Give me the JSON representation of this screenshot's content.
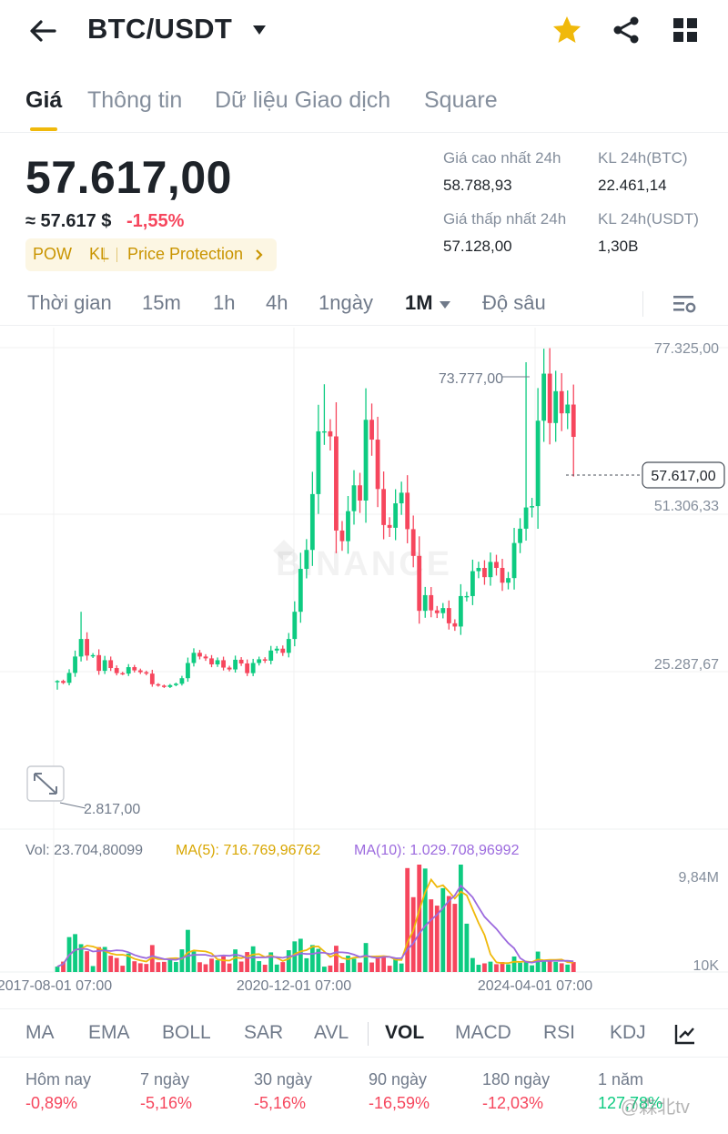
{
  "header": {
    "pair": "BTC/USDT",
    "icons": [
      "back-arrow-icon",
      "caret-down-icon",
      "star-icon",
      "share-icon",
      "grid-icon"
    ],
    "star_color": "#f0b90b"
  },
  "tabs": [
    {
      "label": "Giá",
      "active": true
    },
    {
      "label": "Thông tin"
    },
    {
      "label": "Dữ liệu Giao dịch"
    },
    {
      "label": "Square"
    }
  ],
  "price": {
    "last": "57.617,00",
    "usd_equiv": "≈ 57.617 $",
    "change": "-1,55%",
    "tags": [
      "POW",
      "KL",
      "Price Protection"
    ]
  },
  "stats": {
    "high_label": "Giá cao nhất 24h",
    "high_value": "58.788,93",
    "vol_btc_label": "KL 24h(BTC)",
    "vol_btc_value": "22.461,14",
    "low_label": "Giá thấp nhất 24h",
    "low_value": "57.128,00",
    "vol_usdt_label": "KL 24h(USDT)",
    "vol_usdt_value": "1,30B"
  },
  "intervals": [
    {
      "label": "Thời gian"
    },
    {
      "label": "15m"
    },
    {
      "label": "1h"
    },
    {
      "label": "4h"
    },
    {
      "label": "1ngày"
    },
    {
      "label": "1M",
      "active": true
    },
    {
      "label": "Độ sâu"
    }
  ],
  "chart": {
    "watermark": "BINANCE",
    "y_axis_labels": [
      "77.325,00",
      "51.306,33",
      "25.287,67"
    ],
    "current_price_tag": "57.617,00",
    "max_label": "73.777,00",
    "min_label": "2.817,00",
    "volume_legend": {
      "vol": "Vol: 23.704,80099",
      "ma5": "MA(5): 716.769,96762",
      "ma10": "MA(10): 1.029.708,96992"
    },
    "volume_axis": [
      "9,84M",
      "10K"
    ],
    "x_axis_labels": [
      "2017-08-01 07:00",
      "2020-12-01 07:00",
      "2024-04-01 07:00"
    ],
    "colors": {
      "up": "#0ecb81",
      "down": "#f6465d",
      "ma5": "#f0b90b",
      "ma10": "#9c6ade"
    }
  },
  "chart_data": {
    "type": "candlestick",
    "interval": "1M",
    "close_prices": [
      4700,
      4300,
      6450,
      10000,
      13800,
      10200,
      10300,
      6900,
      9200,
      7500,
      6400,
      6300,
      7700,
      7000,
      6600,
      6300,
      4000,
      3700,
      3400,
      3800,
      4100,
      5300,
      8600,
      10800,
      10000,
      9600,
      8300,
      9200,
      7600,
      7200,
      9300,
      8500,
      6400,
      8600,
      9400,
      9100,
      11300,
      11700,
      10800,
      13800,
      19700,
      29000,
      33100,
      45200,
      58800,
      58800,
      57700,
      37300,
      35000,
      41500,
      47100,
      43800,
      61300,
      57000,
      46300,
      38500,
      37900,
      43200,
      45500,
      37600,
      31800,
      19900,
      23300,
      20000,
      19400,
      20500,
      17200,
      16500,
      23100,
      23100,
      28500,
      29200,
      27200,
      30500,
      29200,
      26000,
      27000,
      34600,
      37700,
      42300,
      42600,
      61100,
      71300,
      60600,
      67500,
      62700,
      64600,
      57600
    ],
    "price_ylim": [
      2817,
      77325
    ],
    "volume_ylim": [
      10000,
      9840000
    ],
    "y_ticks": [
      77325.0,
      51306.33,
      25287.67
    ],
    "max": 73777.0,
    "min": 2817.0,
    "last": 57617.0
  },
  "indicators": [
    {
      "label": "MA"
    },
    {
      "label": "EMA"
    },
    {
      "label": "BOLL"
    },
    {
      "label": "SAR"
    },
    {
      "label": "AVL"
    },
    {
      "label": "VOL",
      "active": true
    },
    {
      "label": "MACD"
    },
    {
      "label": "RSI"
    },
    {
      "label": "KDJ"
    }
  ],
  "performance": [
    {
      "label": "Hôm nay",
      "value": "-0,89%",
      "positive": false
    },
    {
      "label": "7 ngày",
      "value": "-5,16%",
      "positive": false
    },
    {
      "label": "30 ngày",
      "value": "-5,16%",
      "positive": false
    },
    {
      "label": "90 ngày",
      "value": "-16,59%",
      "positive": false
    },
    {
      "label": "180 ngày",
      "value": "-12,03%",
      "positive": false
    },
    {
      "label": "1 năm",
      "value": "127,78%",
      "positive": true
    }
  ],
  "footer_watermark": "@森北tv"
}
